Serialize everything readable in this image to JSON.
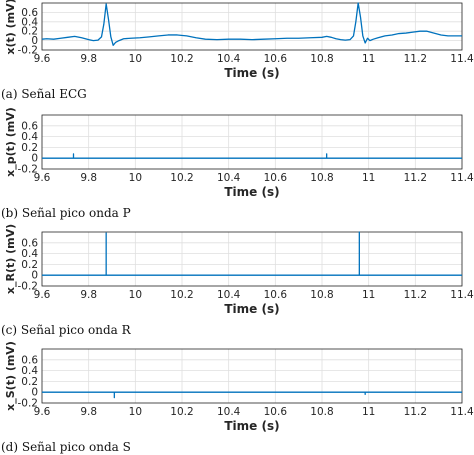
{
  "chart_data": [
    {
      "type": "line",
      "caption": "(a) Señal ECG",
      "ylabel": "x(t) (mV)",
      "xlabel": "Time (s)",
      "xlim": [
        9.6,
        11.4
      ],
      "ylim": [
        -0.2,
        0.8
      ],
      "xticks": [
        "9.6",
        "9.8",
        "10",
        "10.2",
        "10.4",
        "10.6",
        "10.8",
        "11",
        "11.2",
        "11.4"
      ],
      "yticks": [
        "-0.2",
        "0",
        "0.2",
        "0.4",
        "0.6"
      ],
      "grid": true,
      "series": [
        {
          "x": [
            9.6,
            9.62,
            9.65,
            9.68,
            9.71,
            9.74,
            9.77,
            9.8,
            9.82,
            9.84,
            9.855,
            9.865,
            9.875,
            9.885,
            9.895,
            9.905,
            9.915,
            9.93,
            9.95,
            9.98,
            10.02,
            10.06,
            10.1,
            10.14,
            10.18,
            10.22,
            10.26,
            10.3,
            10.35,
            10.4,
            10.45,
            10.5,
            10.55,
            10.6,
            10.65,
            10.7,
            10.75,
            10.8,
            10.82,
            10.84,
            10.86,
            10.88,
            10.9,
            10.92,
            10.935,
            10.945,
            10.955,
            10.965,
            10.975,
            10.985,
            10.995,
            11.005,
            11.02,
            11.04,
            11.07,
            11.1,
            11.13,
            11.16,
            11.19,
            11.22,
            11.25,
            11.28,
            11.31,
            11.34,
            11.37,
            11.4
          ],
          "y": [
            0.03,
            0.04,
            0.03,
            0.05,
            0.07,
            0.09,
            0.06,
            0.02,
            0.0,
            0.01,
            0.08,
            0.35,
            0.78,
            0.45,
            0.08,
            -0.1,
            -0.04,
            0.0,
            0.04,
            0.05,
            0.06,
            0.08,
            0.1,
            0.12,
            0.12,
            0.1,
            0.06,
            0.03,
            0.02,
            0.03,
            0.03,
            0.02,
            0.03,
            0.04,
            0.05,
            0.05,
            0.06,
            0.07,
            0.09,
            0.07,
            0.04,
            0.02,
            0.01,
            0.02,
            0.1,
            0.4,
            0.8,
            0.5,
            0.1,
            -0.05,
            0.05,
            0.0,
            0.03,
            0.06,
            0.1,
            0.12,
            0.15,
            0.16,
            0.18,
            0.2,
            0.2,
            0.16,
            0.12,
            0.1,
            0.1,
            0.1
          ]
        }
      ]
    },
    {
      "type": "line",
      "caption": "(b) Señal pico onda P",
      "ylabel": "x_p(t) (mV)",
      "xlabel": "Time (s)",
      "xlim": [
        9.6,
        11.4
      ],
      "ylim": [
        -0.2,
        0.8
      ],
      "xticks": [
        "9.6",
        "9.8",
        "10",
        "10.2",
        "10.4",
        "10.6",
        "10.8",
        "11",
        "11.2",
        "11.4"
      ],
      "yticks": [
        "-0.2",
        "0",
        "0.2",
        "0.4",
        "0.6"
      ],
      "grid": true,
      "series": [
        {
          "x": [
            9.6,
            9.735,
            9.735,
            9.735,
            10.82,
            10.82,
            10.82,
            11.4
          ],
          "y": [
            0,
            0,
            0.08,
            0,
            0,
            0.08,
            0,
            0
          ]
        }
      ]
    },
    {
      "type": "line",
      "caption": "(c) Señal pico onda R",
      "ylabel": "x_R(t) (mV)",
      "xlabel": "Time (s)",
      "xlim": [
        9.6,
        11.4
      ],
      "ylim": [
        -0.2,
        0.8
      ],
      "xticks": [
        "9.6",
        "9.8",
        "10",
        "10.2",
        "10.4",
        "10.6",
        "10.8",
        "11",
        "11.2",
        "11.4"
      ],
      "yticks": [
        "-0.2",
        "0",
        "0.2",
        "0.4",
        "0.6"
      ],
      "grid": true,
      "series": [
        {
          "x": [
            9.6,
            9.875,
            9.875,
            9.875,
            10.96,
            10.96,
            10.96,
            11.4
          ],
          "y": [
            0,
            0,
            0.78,
            0,
            0,
            0.8,
            0,
            0
          ]
        }
      ]
    },
    {
      "type": "line",
      "caption": "(d) Señal pico onda S",
      "ylabel": "x_S(t) (mV)",
      "xlabel": "Time (s)",
      "xlim": [
        9.6,
        11.4
      ],
      "ylim": [
        -0.2,
        0.8
      ],
      "xticks": [
        "9.6",
        "9.8",
        "10",
        "10.2",
        "10.4",
        "10.6",
        "10.8",
        "11",
        "11.2",
        "11.4"
      ],
      "yticks": [
        "-0.2",
        "0",
        "0.2",
        "0.4",
        "0.6"
      ],
      "grid": true,
      "series": [
        {
          "x": [
            9.6,
            9.91,
            9.91,
            9.91,
            10.985,
            10.985,
            10.985,
            11.4
          ],
          "y": [
            0,
            0,
            -0.1,
            0,
            0,
            -0.04,
            0,
            0
          ]
        }
      ]
    }
  ],
  "style": {
    "line_color": "#0072bd",
    "grid_color": "#dfdfdf",
    "axis_color": "#262626"
  }
}
